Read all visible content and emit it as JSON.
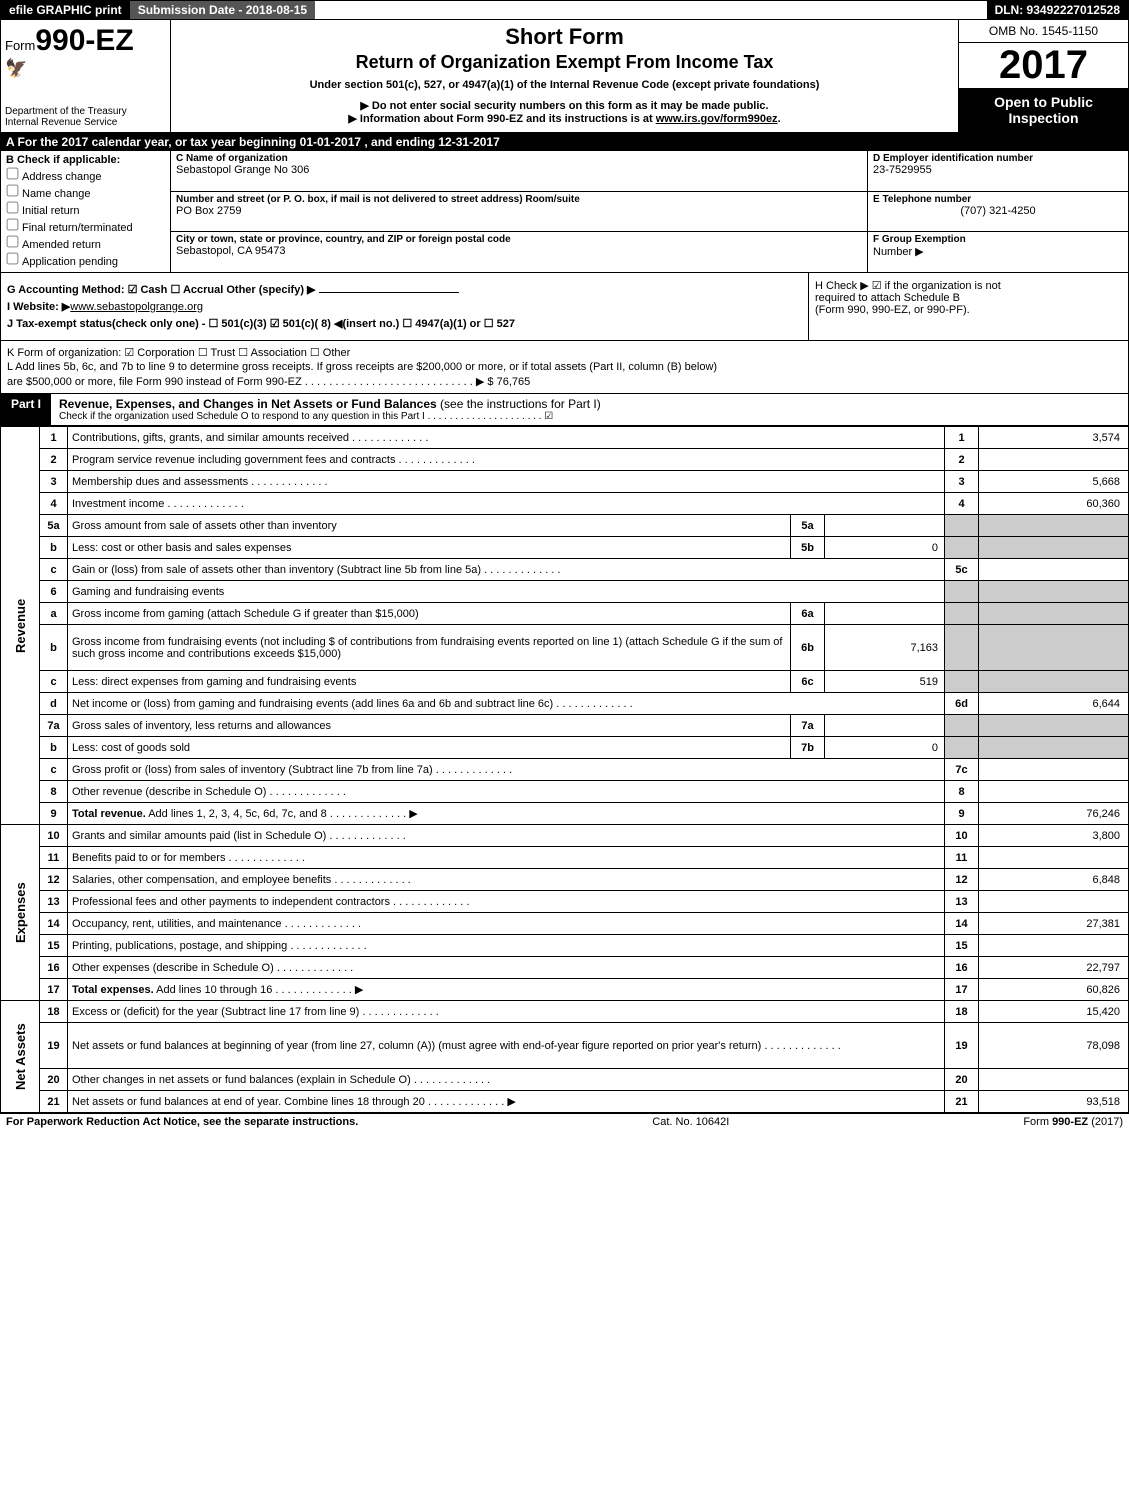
{
  "topbar": {
    "efile": "efile GRAPHIC print",
    "submission": "Submission Date - 2018-08-15",
    "dln": "DLN: 93492227012528"
  },
  "header": {
    "form_prefix": "Form",
    "form_number": "990-EZ",
    "dept": "Department of the Treasury",
    "irs": "Internal Revenue Service",
    "title1": "Short Form",
    "title2": "Return of Organization Exempt From Income Tax",
    "sub": "Under section 501(c), 527, or 4947(a)(1) of the Internal Revenue Code (except private foundations)",
    "bullet1": "▶ Do not enter social security numbers on this form as it may be made public.",
    "bullet2_pre": "▶ Information about Form 990-EZ and its instructions is at ",
    "bullet2_link": "www.irs.gov/form990ez",
    "omb": "OMB No. 1545-1150",
    "year": "2017",
    "inspect1": "Open to Public",
    "inspect2": "Inspection"
  },
  "lineA": "A  For the 2017 calendar year, or tax year beginning 01-01-2017             , and ending 12-31-2017",
  "colB": {
    "hdr": "B  Check if applicable:",
    "items": [
      "Address change",
      "Name change",
      "Initial return",
      "Final return/terminated",
      "Amended return",
      "Application pending"
    ]
  },
  "colC": {
    "c_lbl": "C Name of organization",
    "c_val": "Sebastopol Grange No 306",
    "addr_lbl": "Number and street (or P. O. box, if mail is not delivered to street address)    Room/suite",
    "addr_val": "PO Box 2759",
    "city_lbl": "City or town, state or province, country, and ZIP or foreign postal code",
    "city_val": "Sebastopol, CA  95473"
  },
  "colD": {
    "d_lbl": "D Employer identification number",
    "d_val": "23-7529955",
    "e_lbl": "E Telephone number",
    "e_val": "(707) 321-4250",
    "f_lbl": "F Group Exemption",
    "f_lbl2": "Number    ▶"
  },
  "gj": {
    "g": "G Accounting Method:   ☑ Cash   ☐ Accrual   Other (specify) ▶",
    "i_pre": "I Website: ▶",
    "i_val": "www.sebastopolgrange.org",
    "j": "J Tax-exempt status(check only one) -  ☐ 501(c)(3)  ☑ 501(c)( 8) ◀(insert no.)  ☐ 4947(a)(1) or  ☐ 527",
    "h1": "H   Check ▶  ☑  if the organization is not",
    "h2": "required to attach Schedule B",
    "h3": "(Form 990, 990-EZ, or 990-PF)."
  },
  "kl": {
    "k": "K Form of organization:   ☑ Corporation   ☐ Trust   ☐ Association   ☐ Other",
    "l1": "L Add lines 5b, 6c, and 7b to line 9 to determine gross receipts. If gross receipts are $200,000 or more, or if total assets (Part II, column (B) below)",
    "l2": "are $500,000 or more, file Form 990 instead of Form 990-EZ  . . . . . . . . . . . . . . . . . . . . . . . . . . . . ▶ $ 76,765"
  },
  "partI": {
    "tag": "Part I",
    "title": "Revenue, Expenses, and Changes in Net Assets or Fund Balances",
    "title_suffix": " (see the instructions for Part I)",
    "sub": "Check if the organization used Schedule O to respond to any question in this Part I . . . . . . . . . . . . . . . . . . . . .  ☑"
  },
  "sides": {
    "rev": "Revenue",
    "exp": "Expenses",
    "na": "Net Assets"
  },
  "rows": [
    {
      "n": "1",
      "d": "Contributions, gifts, grants, and similar amounts received",
      "box": "1",
      "amt": "3,574"
    },
    {
      "n": "2",
      "d": "Program service revenue including government fees and contracts",
      "box": "2",
      "amt": ""
    },
    {
      "n": "3",
      "d": "Membership dues and assessments",
      "box": "3",
      "amt": "5,668"
    },
    {
      "n": "4",
      "d": "Investment income",
      "box": "4",
      "amt": "60,360"
    },
    {
      "n": "5a",
      "d": "Gross amount from sale of assets other than inventory",
      "mini": "5a",
      "minival": "",
      "grey": true
    },
    {
      "n": "b",
      "d": "Less: cost or other basis and sales expenses",
      "mini": "5b",
      "minival": "0",
      "grey": true
    },
    {
      "n": "c",
      "d": "Gain or (loss) from sale of assets other than inventory (Subtract line 5b from line 5a)",
      "box": "5c",
      "amt": ""
    },
    {
      "n": "6",
      "d": "Gaming and fundraising events",
      "grey": true,
      "noval": true
    },
    {
      "n": "a",
      "d": "Gross income from gaming (attach Schedule G if greater than $15,000)",
      "mini": "6a",
      "minival": "",
      "grey": true
    },
    {
      "n": "b",
      "d": "Gross income from fundraising events (not including $                     of contributions from fundraising events reported on line 1) (attach Schedule G if the sum of such gross income and contributions exceeds $15,000)",
      "mini": "6b",
      "minival": "7,163",
      "grey": true,
      "tall": true
    },
    {
      "n": "c",
      "d": "Less: direct expenses from gaming and fundraising events",
      "mini": "6c",
      "minival": "519",
      "grey": true
    },
    {
      "n": "d",
      "d": "Net income or (loss) from gaming and fundraising events (add lines 6a and 6b and subtract line 6c)",
      "box": "6d",
      "amt": "6,644"
    },
    {
      "n": "7a",
      "d": "Gross sales of inventory, less returns and allowances",
      "mini": "7a",
      "minival": "",
      "grey": true
    },
    {
      "n": "b",
      "d": "Less: cost of goods sold",
      "mini": "7b",
      "minival": "0",
      "grey": true
    },
    {
      "n": "c",
      "d": "Gross profit or (loss) from sales of inventory (Subtract line 7b from line 7a)",
      "box": "7c",
      "amt": ""
    },
    {
      "n": "8",
      "d": "Other revenue (describe in Schedule O)",
      "box": "8",
      "amt": ""
    },
    {
      "n": "9",
      "d": "Total revenue. Add lines 1, 2, 3, 4, 5c, 6d, 7c, and 8",
      "box": "9",
      "amt": "76,246",
      "bold": true,
      "arrow": true
    },
    {
      "n": "10",
      "d": "Grants and similar amounts paid (list in Schedule O)",
      "box": "10",
      "amt": "3,800"
    },
    {
      "n": "11",
      "d": "Benefits paid to or for members",
      "box": "11",
      "amt": ""
    },
    {
      "n": "12",
      "d": "Salaries, other compensation, and employee benefits",
      "box": "12",
      "amt": "6,848"
    },
    {
      "n": "13",
      "d": "Professional fees and other payments to independent contractors",
      "box": "13",
      "amt": ""
    },
    {
      "n": "14",
      "d": "Occupancy, rent, utilities, and maintenance",
      "box": "14",
      "amt": "27,381"
    },
    {
      "n": "15",
      "d": "Printing, publications, postage, and shipping",
      "box": "15",
      "amt": ""
    },
    {
      "n": "16",
      "d": "Other expenses (describe in Schedule O)",
      "box": "16",
      "amt": "22,797"
    },
    {
      "n": "17",
      "d": "Total expenses. Add lines 10 through 16",
      "box": "17",
      "amt": "60,826",
      "bold": true,
      "arrow": true
    },
    {
      "n": "18",
      "d": "Excess or (deficit) for the year (Subtract line 17 from line 9)",
      "box": "18",
      "amt": "15,420"
    },
    {
      "n": "19",
      "d": "Net assets or fund balances at beginning of year (from line 27, column (A)) (must agree with end-of-year figure reported on prior year's return)",
      "box": "19",
      "amt": "78,098",
      "tall": true
    },
    {
      "n": "20",
      "d": "Other changes in net assets or fund balances (explain in Schedule O)",
      "box": "20",
      "amt": ""
    },
    {
      "n": "21",
      "d": "Net assets or fund balances at end of year. Combine lines 18 through 20",
      "box": "21",
      "amt": "93,518",
      "arrow": true
    }
  ],
  "footer": {
    "left": "For Paperwork Reduction Act Notice, see the separate instructions.",
    "center": "Cat. No. 10642I",
    "right_pre": "Form ",
    "right_b": "990-EZ",
    "right_suf": " (2017)"
  }
}
